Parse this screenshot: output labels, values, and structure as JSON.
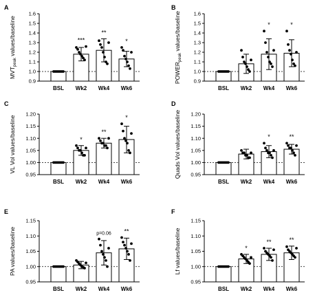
{
  "chart_data": [
    {
      "type": "bar",
      "panel_label": "A",
      "ylabel": {
        "main": "MVT",
        "sub": "peak",
        "rest": " values/baseline"
      },
      "ylim": [
        0.9,
        1.6
      ],
      "yticks": [
        0.9,
        1.0,
        1.1,
        1.2,
        1.3,
        1.4,
        1.5,
        1.6
      ],
      "tick_labels": [
        "0.9",
        "1.0",
        "1.1",
        "1.2",
        "1.3",
        "1.4",
        "1.5",
        "1.6"
      ],
      "reference_line": 1.0,
      "categories": [
        "BSL",
        "Wk2",
        "Wk4",
        "Wk6"
      ],
      "values": [
        1.0,
        1.18,
        1.22,
        1.13
      ],
      "errors": [
        0.0,
        0.07,
        0.12,
        0.08
      ],
      "points": [
        [
          1,
          1,
          1,
          1,
          1,
          1,
          1,
          1
        ],
        [
          1.25,
          1.23,
          1.2,
          1.18,
          1.16,
          1.14,
          1.12,
          1.26
        ],
        [
          1.32,
          1.28,
          1.25,
          1.2,
          1.15,
          1.1,
          1.08,
          1.3
        ],
        [
          1.25,
          1.22,
          1.16,
          1.13,
          1.1,
          1.06,
          1.03,
          1.2
        ]
      ],
      "annotations": [
        "",
        "***",
        "**",
        "*"
      ]
    },
    {
      "type": "bar",
      "panel_label": "B",
      "ylabel": {
        "main": "POWER",
        "sub": "peak",
        "rest": " values/baseline"
      },
      "ylim": [
        0.9,
        1.6
      ],
      "yticks": [
        0.9,
        1.0,
        1.1,
        1.2,
        1.3,
        1.4,
        1.5,
        1.6
      ],
      "tick_labels": [
        "0.9",
        "1.0",
        "1.1",
        "1.2",
        "1.3",
        "1.4",
        "1.5",
        "1.6"
      ],
      "reference_line": 1.0,
      "categories": [
        "BSL",
        "Wk2",
        "Wk4",
        "Wk6"
      ],
      "values": [
        1.0,
        1.08,
        1.18,
        1.19
      ],
      "errors": [
        0.0,
        0.1,
        0.16,
        0.14
      ],
      "points": [
        [
          1,
          1,
          1,
          1,
          1,
          1,
          1,
          1
        ],
        [
          1.22,
          1.15,
          1.1,
          1.08,
          1.05,
          1.02,
          1.0,
          1.12
        ],
        [
          1.42,
          1.3,
          1.2,
          1.15,
          1.1,
          1.08,
          1.05,
          1.22
        ],
        [
          1.42,
          1.28,
          1.22,
          1.18,
          1.12,
          1.08,
          1.06,
          1.2
        ]
      ],
      "annotations": [
        "",
        "",
        "*",
        "*"
      ]
    },
    {
      "type": "bar",
      "panel_label": "C",
      "ylabel": {
        "main": "VL Vol values/baseline",
        "sub": "",
        "rest": ""
      },
      "ylim": [
        0.95,
        1.2
      ],
      "yticks": [
        0.95,
        1.0,
        1.05,
        1.1,
        1.15,
        1.2
      ],
      "tick_labels": [
        "0.95",
        "1.00",
        "1.05",
        "1.10",
        "1.15",
        "1.20"
      ],
      "reference_line": 1.0,
      "categories": [
        "BSL",
        "Wk2",
        "Wk4",
        "Wk6"
      ],
      "values": [
        1.0,
        1.05,
        1.08,
        1.095
      ],
      "errors": [
        0.0,
        0.02,
        0.02,
        0.055
      ],
      "points": [
        [
          1,
          1,
          1,
          1,
          1,
          1,
          1,
          1
        ],
        [
          1.07,
          1.06,
          1.05,
          1.05,
          1.04,
          1.03,
          1.03,
          1.06
        ],
        [
          1.1,
          1.09,
          1.08,
          1.08,
          1.07,
          1.07,
          1.06,
          1.1
        ],
        [
          1.16,
          1.13,
          1.1,
          1.09,
          1.08,
          1.05,
          1.04,
          1.12
        ]
      ],
      "annotations": [
        "",
        "*",
        "**",
        "*"
      ]
    },
    {
      "type": "bar",
      "panel_label": "D",
      "ylabel": {
        "main": "Quads Vol values/baseline",
        "sub": "",
        "rest": ""
      },
      "ylim": [
        0.95,
        1.2
      ],
      "yticks": [
        0.95,
        1.0,
        1.05,
        1.1,
        1.15,
        1.2
      ],
      "tick_labels": [
        "0.95",
        "1.00",
        "1.05",
        "1.10",
        "1.15",
        "1.20"
      ],
      "reference_line": 1.0,
      "categories": [
        "BSL",
        "Wk2",
        "Wk4",
        "Wk6"
      ],
      "values": [
        1.0,
        1.035,
        1.045,
        1.055
      ],
      "errors": [
        0.0,
        0.02,
        0.025,
        0.02
      ],
      "points": [
        [
          1,
          1,
          1,
          1,
          1,
          1,
          1,
          1
        ],
        [
          1.05,
          1.04,
          1.04,
          1.03,
          1.03,
          1.02,
          1.02,
          1.04
        ],
        [
          1.08,
          1.06,
          1.05,
          1.04,
          1.04,
          1.03,
          1.02,
          1.05
        ],
        [
          1.08,
          1.07,
          1.06,
          1.06,
          1.05,
          1.04,
          1.03,
          1.07
        ]
      ],
      "annotations": [
        "",
        "",
        "*",
        "**"
      ]
    },
    {
      "type": "bar",
      "panel_label": "E",
      "ylabel": {
        "main": "PA values/baseline",
        "sub": "",
        "rest": ""
      },
      "ylim": [
        0.95,
        1.15
      ],
      "yticks": [
        0.95,
        1.0,
        1.05,
        1.1,
        1.15
      ],
      "tick_labels": [
        "0.95",
        "1.00",
        "1.05",
        "1.10",
        "1.15"
      ],
      "reference_line": 1.0,
      "categories": [
        "BSL",
        "Wk2",
        "Wk4",
        "Wk6"
      ],
      "values": [
        1.0,
        1.005,
        1.045,
        1.058
      ],
      "errors": [
        0.0,
        0.012,
        0.04,
        0.035
      ],
      "points": [
        [
          1,
          1,
          1,
          1,
          1,
          1,
          1,
          1
        ],
        [
          1.02,
          1.015,
          1.01,
          1.005,
          1.0,
          0.998,
          0.995,
          1.012
        ],
        [
          1.09,
          1.07,
          1.05,
          1.04,
          1.03,
          1.02,
          1.0,
          1.06
        ],
        [
          1.095,
          1.08,
          1.07,
          1.06,
          1.05,
          1.04,
          1.02,
          1.075
        ]
      ],
      "annotations": [
        "",
        "",
        "p=0.06",
        "**"
      ]
    },
    {
      "type": "bar",
      "panel_label": "F",
      "ylabel": {
        "main": "Lf values/baseline",
        "sub": "",
        "rest": ""
      },
      "ylim": [
        0.95,
        1.15
      ],
      "yticks": [
        0.95,
        1.0,
        1.05,
        1.1,
        1.15
      ],
      "tick_labels": [
        "0.95",
        "1.00",
        "1.05",
        "1.10",
        "1.15"
      ],
      "reference_line": 1.0,
      "categories": [
        "BSL",
        "Wk2",
        "Wk4",
        "Wk6"
      ],
      "values": [
        1.0,
        1.025,
        1.04,
        1.045
      ],
      "errors": [
        0.0,
        0.015,
        0.02,
        0.022
      ],
      "points": [
        [
          1,
          1,
          1,
          1,
          1,
          1,
          1,
          1
        ],
        [
          1.04,
          1.035,
          1.03,
          1.025,
          1.02,
          1.015,
          1.01,
          1.03
        ],
        [
          1.06,
          1.05,
          1.045,
          1.04,
          1.035,
          1.03,
          1.02,
          1.055
        ],
        [
          1.065,
          1.055,
          1.05,
          1.045,
          1.04,
          1.035,
          1.03,
          1.06
        ]
      ],
      "annotations": [
        "",
        "*",
        "**",
        "**"
      ]
    }
  ]
}
